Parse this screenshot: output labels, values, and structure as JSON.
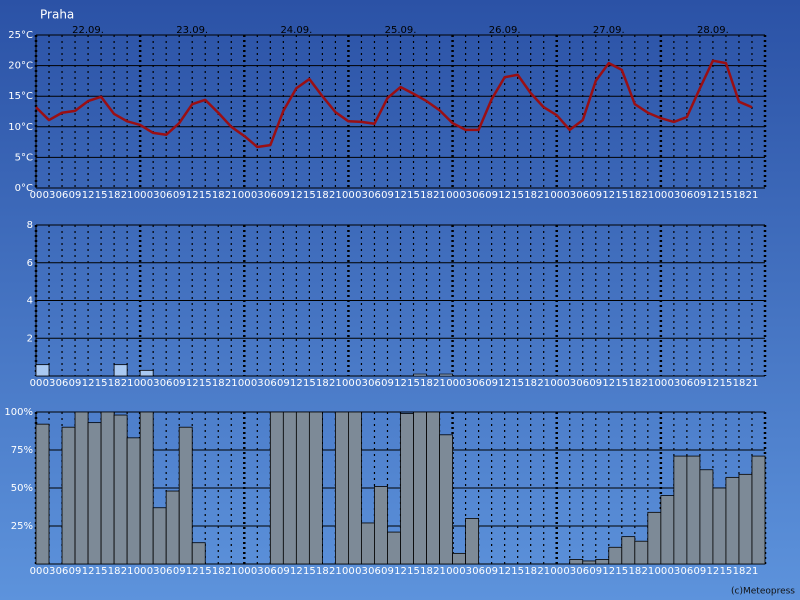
{
  "credit": "(c)Meteopress",
  "chart_data": [
    {
      "type": "line",
      "title": "Praha",
      "days": [
        "22.09.",
        "23.09.",
        "24.09.",
        "25.09.",
        "26.09.",
        "27.09.",
        "28.09."
      ],
      "categories": [
        "00",
        "03",
        "06",
        "09",
        "12",
        "15",
        "18",
        "21",
        "00",
        "03",
        "06",
        "09",
        "12",
        "15",
        "18",
        "21",
        "00",
        "03",
        "06",
        "09",
        "12",
        "15",
        "18",
        "21",
        "00",
        "03",
        "06",
        "09",
        "12",
        "15",
        "18",
        "21",
        "00",
        "03",
        "06",
        "09",
        "12",
        "15",
        "18",
        "21",
        "00",
        "03",
        "06",
        "09",
        "12",
        "15",
        "18",
        "21",
        "00",
        "03",
        "06",
        "09",
        "12",
        "15",
        "18",
        "21"
      ],
      "values": [
        13.2,
        11.1,
        12.3,
        12.6,
        14.2,
        14.9,
        12.1,
        10.9,
        10.3,
        9.0,
        8.7,
        10.6,
        13.7,
        14.4,
        12.3,
        10.0,
        8.5,
        6.7,
        7.0,
        12.6,
        16.3,
        17.8,
        15.0,
        12.4,
        10.9,
        10.8,
        10.5,
        14.7,
        16.5,
        15.4,
        14.2,
        12.7,
        10.6,
        9.5,
        9.5,
        14.5,
        18.1,
        18.5,
        15.5,
        13.2,
        11.9,
        9.5,
        11.1,
        17.5,
        20.4,
        19.3,
        13.7,
        12.3,
        11.4,
        10.8,
        11.6,
        16.3,
        20.8,
        20.4,
        14.1,
        13.2
      ],
      "color": "#9a0f14",
      "ylim": [
        0,
        25
      ],
      "yticks": [
        {
          "value": 0,
          "label": "0°C"
        },
        {
          "value": 5,
          "label": "5°C"
        },
        {
          "value": 10,
          "label": "10°C"
        },
        {
          "value": 15,
          "label": "15°C"
        },
        {
          "value": 20,
          "label": "20°C"
        },
        {
          "value": 25,
          "label": "25°C"
        }
      ],
      "grid": true
    },
    {
      "type": "bar",
      "categories": [
        "00",
        "03",
        "06",
        "09",
        "12",
        "15",
        "18",
        "21",
        "00",
        "03",
        "06",
        "09",
        "12",
        "15",
        "18",
        "21",
        "00",
        "03",
        "06",
        "09",
        "12",
        "15",
        "18",
        "21",
        "00",
        "03",
        "06",
        "09",
        "12",
        "15",
        "18",
        "21",
        "00",
        "03",
        "06",
        "09",
        "12",
        "15",
        "18",
        "21",
        "00",
        "03",
        "06",
        "09",
        "12",
        "15",
        "18",
        "21",
        "00",
        "03",
        "06",
        "09",
        "12",
        "15",
        "18",
        "21"
      ],
      "values": [
        0.6,
        0,
        0,
        0,
        0,
        0,
        0.6,
        0,
        0.3,
        0,
        0,
        0,
        0,
        0,
        0,
        0,
        0,
        0,
        0,
        0,
        0,
        0,
        0,
        0,
        0,
        0,
        0,
        0,
        0,
        0.1,
        0,
        0.1,
        0,
        0,
        0,
        0,
        0,
        0,
        0,
        0,
        0,
        0,
        0,
        0,
        0,
        0,
        0,
        0,
        0,
        0,
        0,
        0,
        0,
        0,
        0,
        0
      ],
      "color": "#a9c9f2",
      "ylim": [
        0,
        8
      ],
      "yticks": [
        2,
        4,
        6,
        8
      ],
      "grid": true
    },
    {
      "type": "bar",
      "categories": [
        "00",
        "03",
        "06",
        "09",
        "12",
        "15",
        "18",
        "21",
        "00",
        "03",
        "06",
        "09",
        "12",
        "15",
        "18",
        "21",
        "00",
        "03",
        "06",
        "09",
        "12",
        "15",
        "18",
        "21",
        "00",
        "03",
        "06",
        "09",
        "12",
        "15",
        "18",
        "21",
        "00",
        "03",
        "06",
        "09",
        "12",
        "15",
        "18",
        "21",
        "00",
        "03",
        "06",
        "09",
        "12",
        "15",
        "18",
        "21",
        "00",
        "03",
        "06",
        "09",
        "12",
        "15",
        "18",
        "21"
      ],
      "values": [
        92,
        0,
        90,
        100,
        93,
        100,
        98,
        83,
        100,
        37,
        48,
        90,
        14,
        0,
        0,
        0,
        0,
        0,
        100,
        100,
        100,
        100,
        0,
        100,
        100,
        27,
        51,
        21,
        99,
        100,
        100,
        85,
        7,
        30,
        0,
        0,
        0,
        0,
        0,
        0,
        0,
        3,
        2,
        3,
        11,
        18,
        15,
        34,
        45,
        71,
        71,
        62,
        50,
        57,
        59,
        71
      ],
      "color": "#7d8a97",
      "ylim": [
        0,
        100
      ],
      "yticks": [
        {
          "value": 25,
          "label": "25%"
        },
        {
          "value": 50,
          "label": "50%"
        },
        {
          "value": 75,
          "label": "75%"
        },
        {
          "value": 100,
          "label": "100%"
        }
      ],
      "grid": true
    }
  ]
}
